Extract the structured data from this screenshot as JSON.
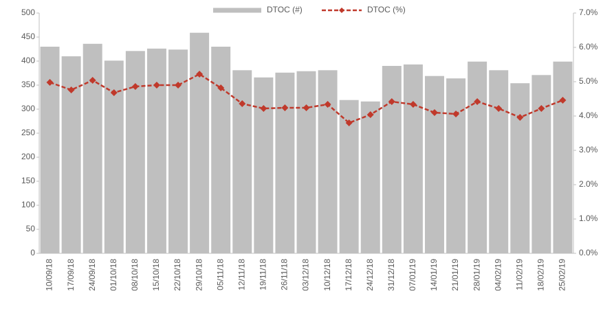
{
  "chart_data": {
    "type": "bar_line",
    "categories": [
      "10/09/18",
      "17/09/18",
      "24/09/18",
      "01/10/18",
      "08/10/18",
      "15/10/18",
      "22/10/18",
      "29/10/18",
      "05/11/18",
      "12/11/18",
      "19/11/18",
      "26/11/18",
      "03/12/18",
      "10/12/18",
      "17/12/18",
      "24/12/18",
      "31/12/18",
      "07/01/19",
      "14/01/19",
      "21/01/19",
      "28/01/19",
      "04/02/19",
      "11/02/19",
      "18/02/19",
      "25/02/19"
    ],
    "series": [
      {
        "name": "DTOC (#)",
        "type": "bar",
        "color": "#bfbfbf",
        "axis": "y",
        "values": [
          430,
          410,
          436,
          401,
          421,
          426,
          424,
          459,
          430,
          381,
          366,
          376,
          379,
          381,
          319,
          316,
          390,
          393,
          369,
          364,
          399,
          381,
          354,
          371,
          399
        ]
      },
      {
        "name": "DTOC (%)",
        "type": "line",
        "color": "#c0392b",
        "axis": "y2",
        "values": [
          4.98,
          4.76,
          5.04,
          4.68,
          4.86,
          4.9,
          4.9,
          5.22,
          4.82,
          4.36,
          4.22,
          4.24,
          4.24,
          4.34,
          3.8,
          4.04,
          4.42,
          4.34,
          4.1,
          4.06,
          4.42,
          4.22,
          3.96,
          4.22,
          4.46
        ]
      }
    ],
    "ylim": [
      0,
      500
    ],
    "yticks": [
      0,
      50,
      100,
      150,
      200,
      250,
      300,
      350,
      400,
      450,
      500
    ],
    "y2lim": [
      0,
      7
    ],
    "y2ticks": [
      {
        "value": 0,
        "label": "0.0%"
      },
      {
        "value": 1,
        "label": "1.0%"
      },
      {
        "value": 2,
        "label": "2.0%"
      },
      {
        "value": 3,
        "label": "3.0%"
      },
      {
        "value": 4,
        "label": "4.0%"
      },
      {
        "value": 5,
        "label": "5.0%"
      },
      {
        "value": 6,
        "label": "6.0%"
      },
      {
        "value": 7,
        "label": "7.0%"
      }
    ],
    "legend": "top"
  }
}
